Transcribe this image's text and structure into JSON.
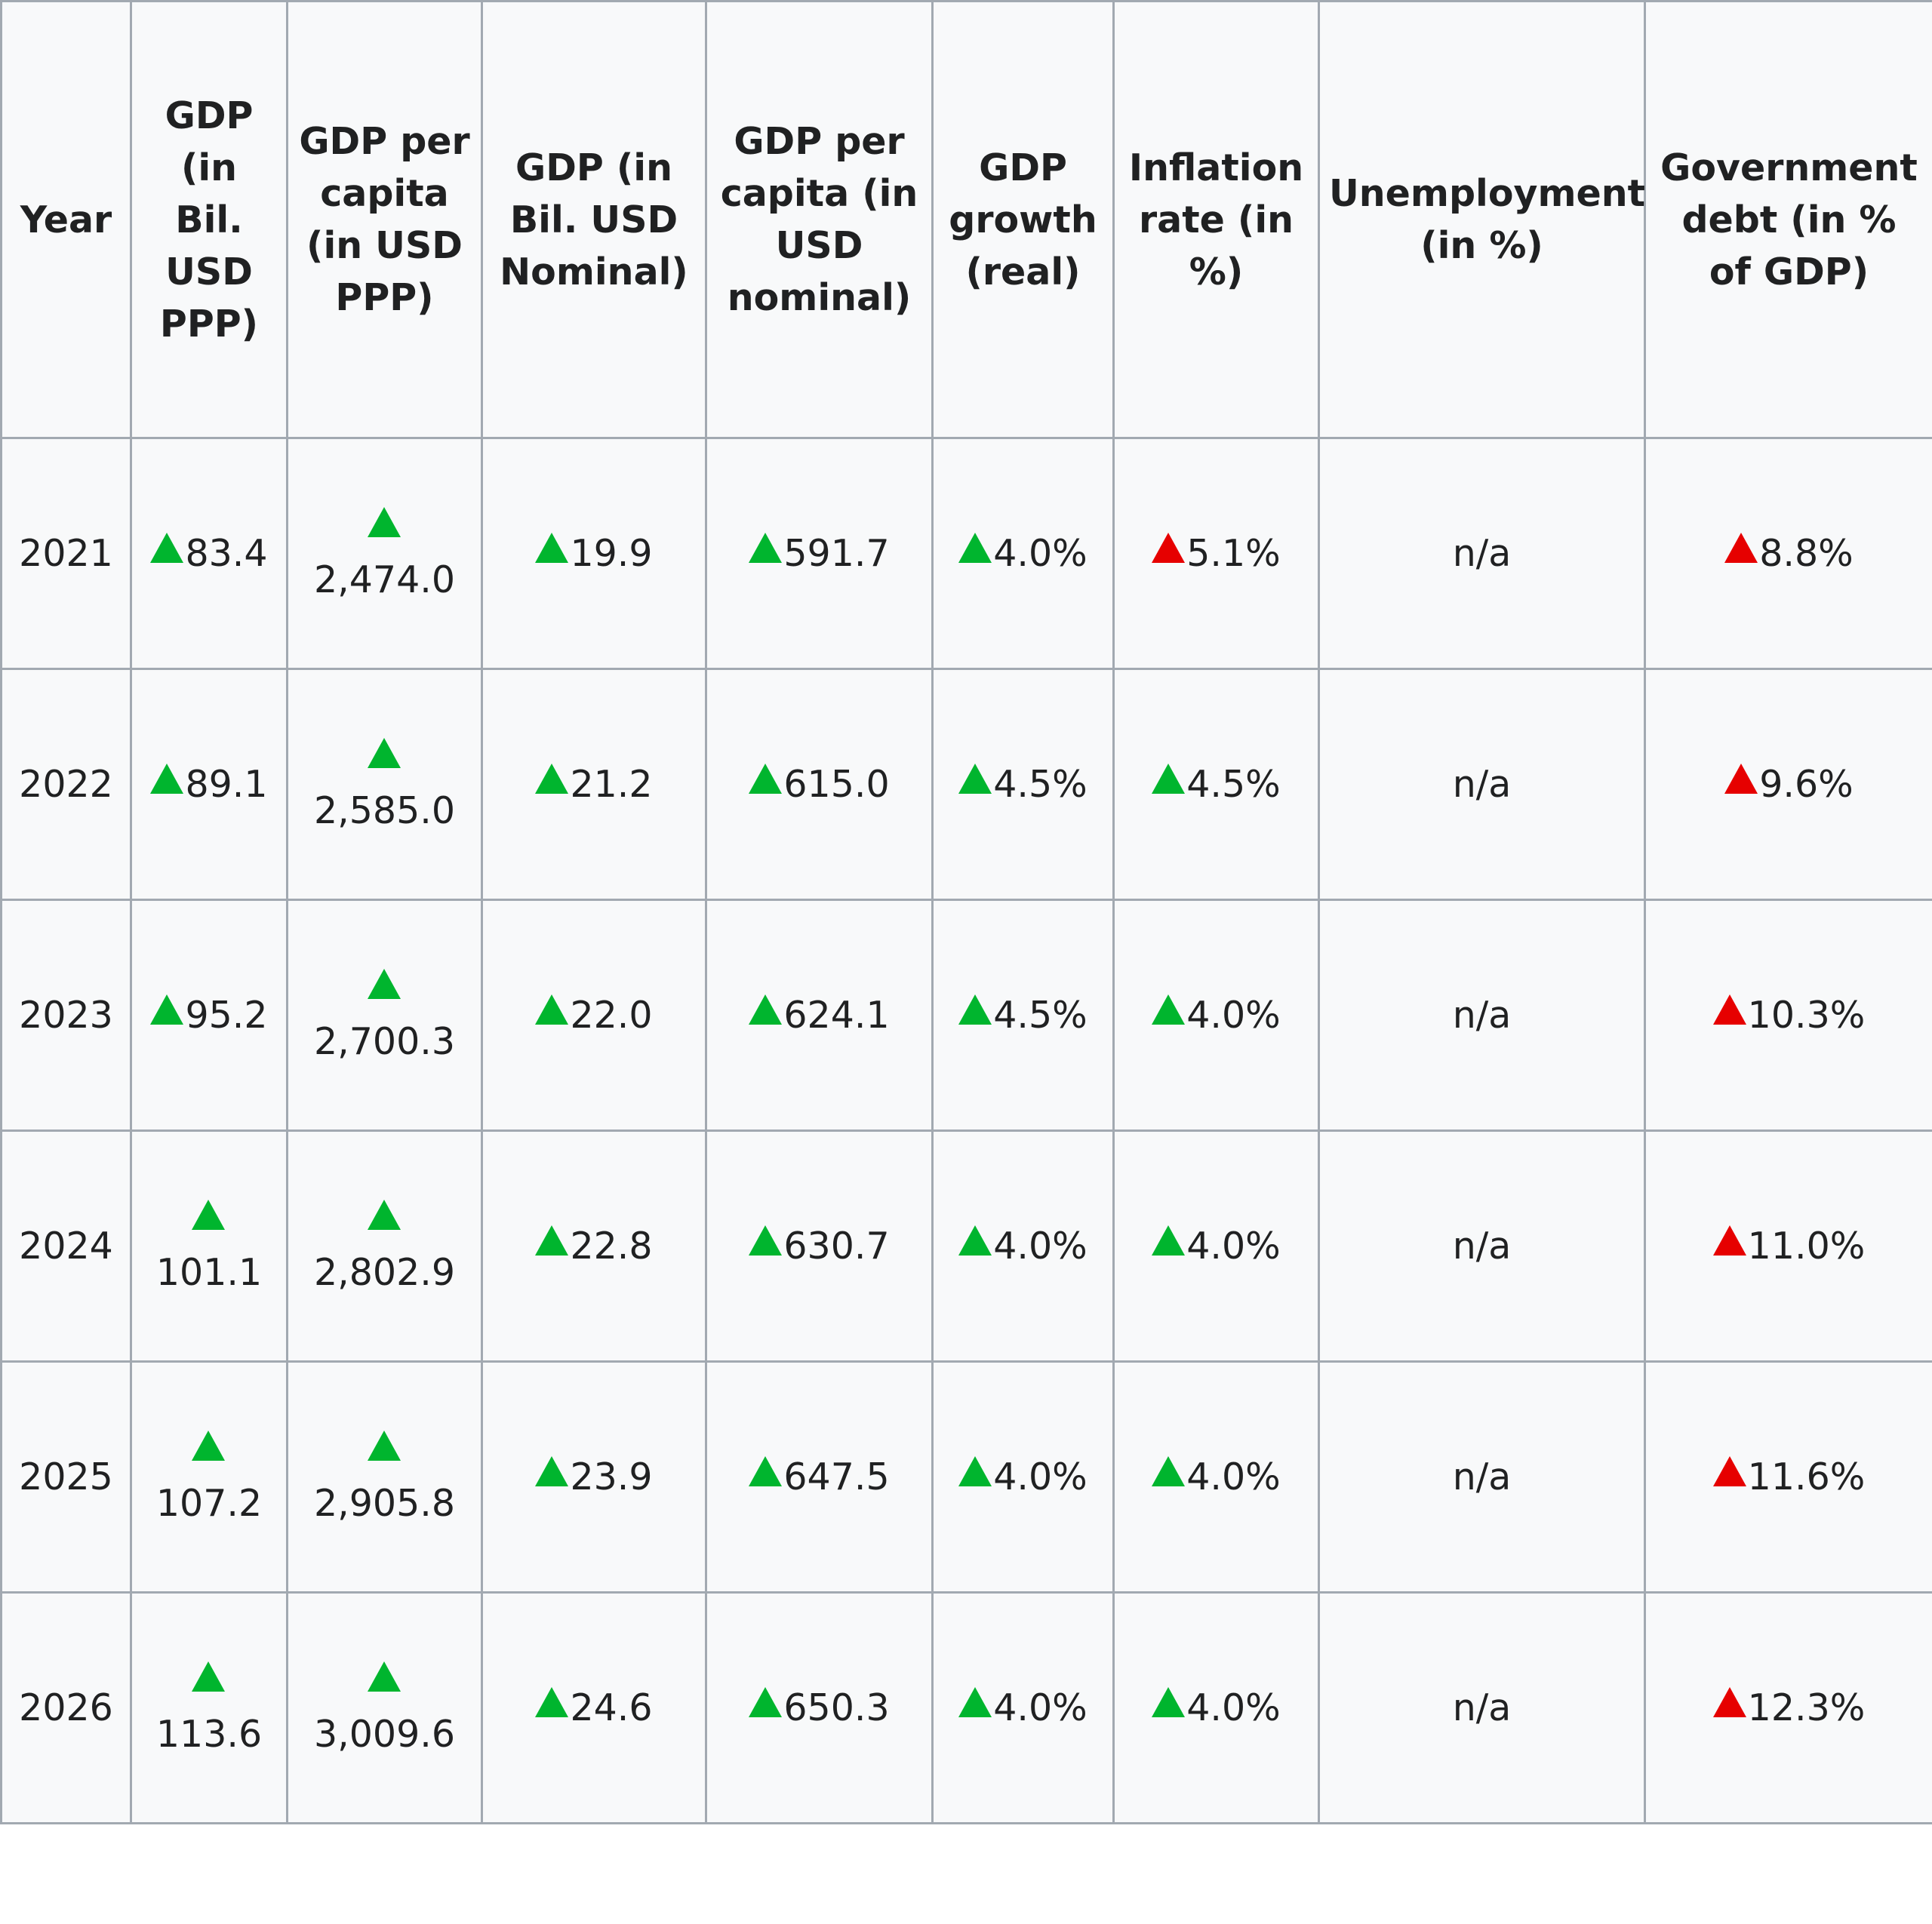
{
  "table": {
    "headers": [
      "Year",
      "GDP (in Bil. USD PPP)",
      "GDP per capita (in USD PPP)",
      "GDP (in Bil. USD Nominal)",
      "GDP per capita (in USD nominal)",
      "GDP growth (real)",
      "Inflation rate (in %)",
      "Unemployment (in %)",
      "Government debt (in % of GDP)"
    ],
    "rows": [
      {
        "year": "2021",
        "cells": [
          {
            "value": "83.4",
            "arrow": "up-green"
          },
          {
            "value": "2,474.0",
            "arrow": "up-green"
          },
          {
            "value": "19.9",
            "arrow": "up-green"
          },
          {
            "value": "591.7",
            "arrow": "up-green"
          },
          {
            "value": "4.0%",
            "arrow": "up-green"
          },
          {
            "value": "5.1%",
            "arrow": "up-red"
          },
          {
            "value": "n/a",
            "arrow": ""
          },
          {
            "value": "8.8%",
            "arrow": "up-red"
          }
        ]
      },
      {
        "year": "2022",
        "cells": [
          {
            "value": "89.1",
            "arrow": "up-green"
          },
          {
            "value": "2,585.0",
            "arrow": "up-green"
          },
          {
            "value": "21.2",
            "arrow": "up-green"
          },
          {
            "value": "615.0",
            "arrow": "up-green"
          },
          {
            "value": "4.5%",
            "arrow": "up-green"
          },
          {
            "value": "4.5%",
            "arrow": "up-green"
          },
          {
            "value": "n/a",
            "arrow": ""
          },
          {
            "value": "9.6%",
            "arrow": "up-red"
          }
        ]
      },
      {
        "year": "2023",
        "cells": [
          {
            "value": "95.2",
            "arrow": "up-green"
          },
          {
            "value": "2,700.3",
            "arrow": "up-green"
          },
          {
            "value": "22.0",
            "arrow": "up-green"
          },
          {
            "value": "624.1",
            "arrow": "up-green"
          },
          {
            "value": "4.5%",
            "arrow": "up-green"
          },
          {
            "value": "4.0%",
            "arrow": "up-green"
          },
          {
            "value": "n/a",
            "arrow": ""
          },
          {
            "value": "10.3%",
            "arrow": "up-red"
          }
        ]
      },
      {
        "year": "2024",
        "cells": [
          {
            "value": "101.1",
            "arrow": "up-green"
          },
          {
            "value": "2,802.9",
            "arrow": "up-green"
          },
          {
            "value": "22.8",
            "arrow": "up-green"
          },
          {
            "value": "630.7",
            "arrow": "up-green"
          },
          {
            "value": "4.0%",
            "arrow": "up-green"
          },
          {
            "value": "4.0%",
            "arrow": "up-green"
          },
          {
            "value": "n/a",
            "arrow": ""
          },
          {
            "value": "11.0%",
            "arrow": "up-red"
          }
        ]
      },
      {
        "year": "2025",
        "cells": [
          {
            "value": "107.2",
            "arrow": "up-green"
          },
          {
            "value": "2,905.8",
            "arrow": "up-green"
          },
          {
            "value": "23.9",
            "arrow": "up-green"
          },
          {
            "value": "647.5",
            "arrow": "up-green"
          },
          {
            "value": "4.0%",
            "arrow": "up-green"
          },
          {
            "value": "4.0%",
            "arrow": "up-green"
          },
          {
            "value": "n/a",
            "arrow": ""
          },
          {
            "value": "11.6%",
            "arrow": "up-red"
          }
        ]
      },
      {
        "year": "2026",
        "cells": [
          {
            "value": "113.6",
            "arrow": "up-green"
          },
          {
            "value": "3,009.6",
            "arrow": "up-green"
          },
          {
            "value": "24.6",
            "arrow": "up-green"
          },
          {
            "value": "650.3",
            "arrow": "up-green"
          },
          {
            "value": "4.0%",
            "arrow": "up-green"
          },
          {
            "value": "4.0%",
            "arrow": "up-green"
          },
          {
            "value": "n/a",
            "arrow": ""
          },
          {
            "value": "12.3%",
            "arrow": "up-red"
          }
        ]
      }
    ]
  },
  "colors": {
    "arrow_up_green": "#00b52e",
    "arrow_up_red": "#e60000",
    "table_background": "#f8f9fa",
    "border": "#a2a9b1"
  }
}
